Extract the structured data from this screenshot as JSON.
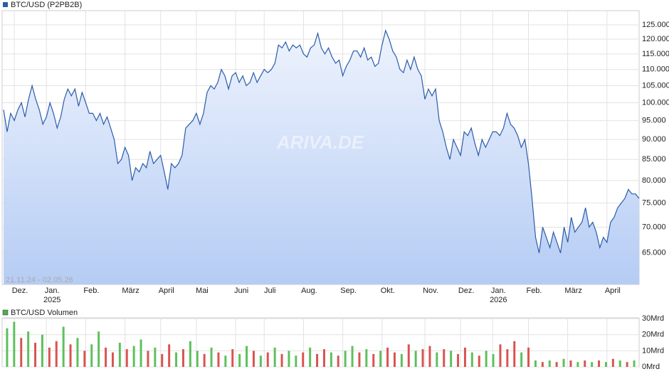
{
  "chart_data": [
    {
      "type": "line",
      "legend": "BTC/USD (P2PB2B)",
      "color": "#2a5caa",
      "fill_top": "#eef3fd",
      "fill_bottom": "#b5ccf4",
      "log_scale": true,
      "grid": true,
      "range_label": "21.11.24 - 02.05.26",
      "watermark": "ARIVA.DE",
      "ylim": [
        59400,
        130200
      ],
      "yticks": [
        {
          "value": 65000,
          "label": "65.000"
        },
        {
          "value": 70000,
          "label": "70.000"
        },
        {
          "value": 75000,
          "label": "75.000"
        },
        {
          "value": 80000,
          "label": "80.000"
        },
        {
          "value": 85000,
          "label": "85.000"
        },
        {
          "value": 90000,
          "label": "90.000"
        },
        {
          "value": 95000,
          "label": "95.000"
        },
        {
          "value": 100000,
          "label": "100.000"
        },
        {
          "value": 105000,
          "label": "105.000"
        },
        {
          "value": 110000,
          "label": "110.000"
        },
        {
          "value": 115000,
          "label": "115.000"
        },
        {
          "value": 120000,
          "label": "120.000"
        },
        {
          "value": 125000,
          "label": "125.000"
        }
      ],
      "xticks": [
        {
          "value": 3,
          "label": "Dez."
        },
        {
          "value": 12,
          "label": "Jan.",
          "sublabel": "2025"
        },
        {
          "value": 23,
          "label": "Feb."
        },
        {
          "value": 34,
          "label": "März"
        },
        {
          "value": 44,
          "label": "April"
        },
        {
          "value": 54,
          "label": "Mai"
        },
        {
          "value": 65,
          "label": "Juni"
        },
        {
          "value": 73,
          "label": "Juli"
        },
        {
          "value": 84,
          "label": "Aug."
        },
        {
          "value": 95,
          "label": "Sep."
        },
        {
          "value": 106,
          "label": "Okt."
        },
        {
          "value": 118,
          "label": "Nov."
        },
        {
          "value": 128,
          "label": "Dez."
        },
        {
          "value": 137,
          "label": "Jan.",
          "sublabel": "2026"
        },
        {
          "value": 147,
          "label": "Feb."
        },
        {
          "value": 158,
          "label": "März"
        },
        {
          "value": 169,
          "label": "April"
        }
      ],
      "values": [
        98000,
        92000,
        97000,
        95000,
        98000,
        100000,
        96000,
        101000,
        105000,
        101000,
        98000,
        94000,
        96000,
        100000,
        97000,
        93000,
        96000,
        101000,
        104000,
        102000,
        104000,
        99000,
        103000,
        100000,
        97000,
        97000,
        95000,
        97000,
        94000,
        96000,
        93000,
        90000,
        84000,
        85000,
        88000,
        86000,
        80000,
        83000,
        82000,
        84000,
        83000,
        87000,
        84000,
        85000,
        86000,
        82000,
        78000,
        84000,
        83000,
        84000,
        86000,
        93000,
        94000,
        95000,
        97000,
        94000,
        97000,
        103000,
        105000,
        104000,
        106000,
        110000,
        108000,
        104000,
        108000,
        109000,
        106000,
        108000,
        105000,
        106000,
        109000,
        106000,
        108000,
        110000,
        109000,
        110000,
        112000,
        118000,
        117000,
        119000,
        116000,
        118000,
        117000,
        118000,
        115000,
        114000,
        117000,
        118000,
        122000,
        117000,
        115000,
        117000,
        114000,
        112000,
        113000,
        108000,
        111000,
        113000,
        116000,
        116000,
        114000,
        117000,
        113000,
        114000,
        111000,
        112000,
        118000,
        123000,
        120000,
        116000,
        114000,
        110000,
        109000,
        113000,
        110000,
        114000,
        110000,
        108000,
        101000,
        104000,
        102000,
        104000,
        95000,
        92000,
        88000,
        85000,
        90000,
        88000,
        86000,
        92000,
        91000,
        93000,
        89000,
        86000,
        90000,
        88000,
        90000,
        92000,
        92000,
        91000,
        93000,
        97000,
        94000,
        93000,
        91000,
        88000,
        90000,
        84000,
        76000,
        68000,
        65000,
        70000,
        68000,
        66000,
        69000,
        67000,
        65000,
        70000,
        67000,
        72000,
        69000,
        70000,
        71000,
        74000,
        70000,
        71000,
        69000,
        66000,
        68000,
        67000,
        71000,
        72000,
        74000,
        75000,
        76000,
        78000,
        77000,
        77000,
        76000
      ]
    },
    {
      "type": "bar",
      "legend": "BTC/USD Volumen",
      "legend_color": "#4caf50",
      "grid": true,
      "ylim": [
        0,
        30.5
      ],
      "yticks": [
        {
          "value": 0,
          "label": "0Mrd"
        },
        {
          "value": 10,
          "label": "10Mrd"
        },
        {
          "value": 20,
          "label": "20Mrd"
        },
        {
          "value": 30,
          "label": "30Mrd"
        }
      ],
      "values": [
        24,
        28,
        18,
        22,
        15,
        20,
        12,
        16,
        25,
        14,
        18,
        10,
        14,
        22,
        12,
        9,
        15,
        11,
        13,
        17,
        10,
        12,
        8,
        14,
        9,
        11,
        16,
        10,
        8,
        12,
        9,
        7,
        11,
        8,
        13,
        10,
        7,
        9,
        12,
        8,
        10,
        7,
        9,
        12,
        8,
        11,
        9,
        7,
        10,
        13,
        9,
        11,
        8,
        10,
        12,
        9,
        8,
        14,
        10,
        11,
        13,
        9,
        11,
        10,
        8,
        12,
        9,
        7,
        10,
        8,
        14,
        11,
        16,
        9,
        12,
        4,
        3,
        4,
        3,
        5,
        4,
        3,
        4,
        3,
        4,
        3,
        5,
        4,
        3,
        4
      ],
      "colors": [
        "#5cc05c",
        "#5cc05c",
        "#d9534f",
        "#5cc05c",
        "#d9534f",
        "#5cc05c",
        "#d9534f",
        "#d9534f",
        "#5cc05c",
        "#d9534f",
        "#5cc05c",
        "#d9534f",
        "#5cc05c",
        "#5cc05c",
        "#d9534f",
        "#d9534f",
        "#5cc05c",
        "#d9534f",
        "#5cc05c",
        "#5cc05c",
        "#d9534f",
        "#5cc05c",
        "#d9534f",
        "#d9534f",
        "#5cc05c",
        "#d9534f",
        "#5cc05c",
        "#5cc05c",
        "#d9534f",
        "#5cc05c",
        "#d9534f",
        "#5cc05c",
        "#d9534f",
        "#5cc05c",
        "#5cc05c",
        "#d9534f",
        "#5cc05c",
        "#d9534f",
        "#5cc05c",
        "#d9534f",
        "#5cc05c",
        "#5cc05c",
        "#d9534f",
        "#5cc05c",
        "#d9534f",
        "#d9534f",
        "#5cc05c",
        "#d9534f",
        "#5cc05c",
        "#5cc05c",
        "#d9534f",
        "#5cc05c",
        "#d9534f",
        "#5cc05c",
        "#d9534f",
        "#d9534f",
        "#5cc05c",
        "#d9534f",
        "#5cc05c",
        "#d9534f",
        "#d9534f",
        "#5cc05c",
        "#d9534f",
        "#5cc05c",
        "#d9534f",
        "#d9534f",
        "#5cc05c",
        "#d9534f",
        "#5cc05c",
        "#5cc05c",
        "#d9534f",
        "#d9534f",
        "#d9534f",
        "#5cc05c",
        "#d9534f",
        "#5cc05c",
        "#d9534f",
        "#5cc05c",
        "#d9534f",
        "#5cc05c",
        "#d9534f",
        "#5cc05c",
        "#d9534f",
        "#5cc05c",
        "#d9534f",
        "#5cc05c",
        "#d9534f",
        "#5cc05c",
        "#d9534f",
        "#5cc05c"
      ]
    }
  ]
}
